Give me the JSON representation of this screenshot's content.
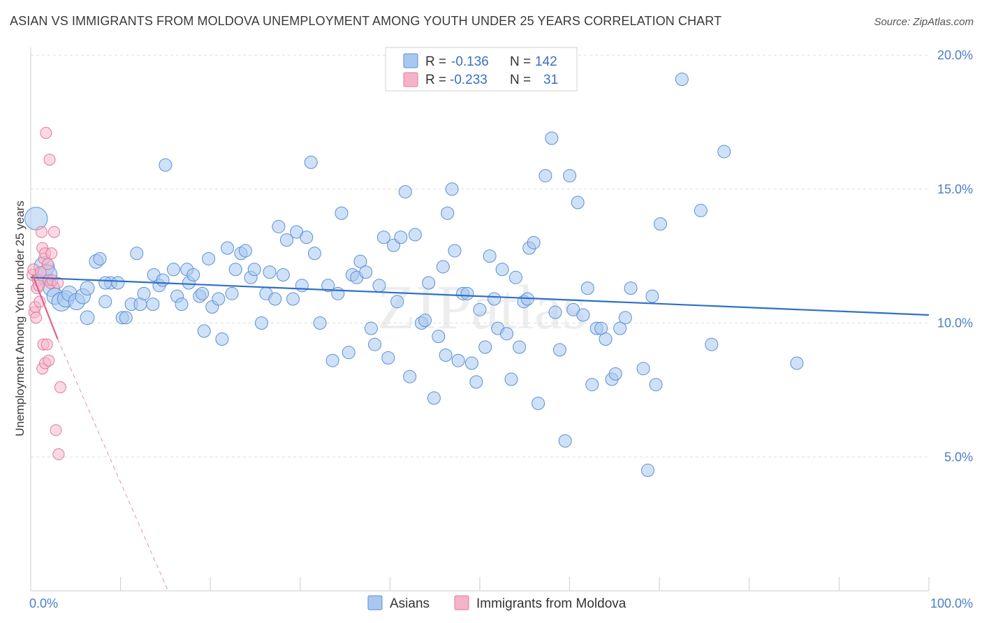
{
  "title": "ASIAN VS IMMIGRANTS FROM MOLDOVA UNEMPLOYMENT AMONG YOUTH UNDER 25 YEARS CORRELATION CHART",
  "source": "Source: ZipAtlas.com",
  "watermark": "ZIPatlas",
  "legend": {
    "rows": [
      {
        "r_label": "R =",
        "r_value": "-0.136",
        "n_label": "N =",
        "n_value": "142"
      },
      {
        "r_label": "R =",
        "r_value": "-0.233",
        "n_label": "N =",
        "n_value": "31"
      }
    ]
  },
  "bottom_legend": [
    "Asians",
    "Immigrants from Moldova"
  ],
  "colors": {
    "asian_fill": "#a8c8f0",
    "asian_stroke": "#5b8fd6",
    "asian_line": "#2f6fc8",
    "moldova_fill": "#f6b3c8",
    "moldova_stroke": "#e07a9c",
    "moldova_line": "#e0608a",
    "tick_text": "#4a7ec8",
    "grid": "#dddddd"
  },
  "chart_data": {
    "type": "scatter",
    "title": "ASIAN VS IMMIGRANTS FROM MOLDOVA UNEMPLOYMENT AMONG YOUTH UNDER 25 YEARS CORRELATION CHART",
    "xlabel": "",
    "ylabel": "Unemployment Among Youth under 25 years",
    "xlim": [
      0,
      100
    ],
    "ylim": [
      0,
      20
    ],
    "x_tick_labels": [
      "0.0%",
      "100.0%"
    ],
    "y_ticks": [
      5,
      10,
      15,
      20
    ],
    "y_tick_labels": [
      "5.0%",
      "10.0%",
      "15.0%",
      "20.0%"
    ],
    "grid": "horizontal dashed",
    "legend_position": "top-center",
    "series": [
      {
        "name": "Asians",
        "trend": {
          "x": [
            0,
            100
          ],
          "y": [
            11.7,
            10.3
          ]
        },
        "points": [
          [
            0.6,
            13.9,
            1.8
          ],
          [
            1.5,
            12.1,
            1.6
          ],
          [
            1.8,
            11.8,
            1.6
          ],
          [
            2.3,
            11.3,
            1.3
          ],
          [
            2.7,
            11.0,
            1.3
          ],
          [
            3.4,
            10.8,
            1.5
          ],
          [
            3.9,
            10.9,
            1.3
          ],
          [
            4.3,
            11.1,
            1.2
          ],
          [
            5.1,
            10.8,
            1.3
          ],
          [
            5.8,
            11.0,
            1.2
          ],
          [
            6.3,
            11.3,
            1.1
          ],
          [
            6.3,
            10.2,
            1.1
          ],
          [
            7.3,
            12.3,
            1.1
          ],
          [
            7.7,
            12.4,
            1.0
          ],
          [
            8.3,
            10.8,
            1.0
          ],
          [
            8.9,
            11.5,
            1.0
          ],
          [
            9.7,
            11.5,
            1.0
          ],
          [
            10.2,
            10.2,
            1.0
          ],
          [
            10.6,
            10.2,
            1.0
          ],
          [
            11.2,
            10.7,
            1.0
          ],
          [
            11.8,
            12.6,
            1.0
          ],
          [
            12.2,
            10.7,
            1.0
          ],
          [
            12.6,
            11.1,
            1.0
          ],
          [
            13.7,
            11.8,
            1.0
          ],
          [
            14.3,
            11.4,
            1.0
          ],
          [
            14.7,
            11.6,
            1.0
          ],
          [
            15.0,
            15.9,
            1.0
          ],
          [
            15.9,
            12.0,
            1.0
          ],
          [
            16.3,
            11.0,
            1.0
          ],
          [
            16.8,
            10.7,
            1.0
          ],
          [
            17.4,
            12.0,
            1.0
          ],
          [
            17.6,
            11.5,
            1.0
          ],
          [
            18.1,
            11.8,
            1.0
          ],
          [
            18.8,
            11.0,
            1.0
          ],
          [
            19.3,
            9.7,
            1.0
          ],
          [
            19.8,
            12.4,
            1.0
          ],
          [
            20.2,
            10.6,
            1.0
          ],
          [
            20.9,
            10.9,
            1.0
          ],
          [
            21.3,
            9.4,
            1.0
          ],
          [
            21.9,
            12.8,
            1.0
          ],
          [
            22.4,
            11.1,
            1.0
          ],
          [
            22.8,
            12.0,
            1.0
          ],
          [
            23.4,
            12.6,
            1.0
          ],
          [
            23.9,
            12.7,
            1.0
          ],
          [
            24.5,
            11.7,
            1.0
          ],
          [
            24.9,
            12.0,
            1.0
          ],
          [
            25.7,
            10.0,
            1.0
          ],
          [
            26.2,
            11.1,
            1.0
          ],
          [
            26.6,
            11.9,
            1.0
          ],
          [
            27.2,
            10.9,
            1.0
          ],
          [
            27.6,
            13.6,
            1.0
          ],
          [
            28.1,
            11.8,
            1.0
          ],
          [
            28.5,
            13.1,
            1.0
          ],
          [
            29.2,
            10.9,
            1.0
          ],
          [
            29.6,
            13.4,
            1.0
          ],
          [
            30.2,
            11.4,
            1.0
          ],
          [
            30.7,
            13.2,
            1.0
          ],
          [
            31.2,
            16.0,
            1.0
          ],
          [
            31.6,
            12.6,
            1.0
          ],
          [
            32.2,
            10.0,
            1.0
          ],
          [
            33.1,
            11.4,
            1.0
          ],
          [
            33.6,
            8.6,
            1.0
          ],
          [
            34.2,
            11.1,
            1.0
          ],
          [
            34.6,
            14.1,
            1.0
          ],
          [
            35.4,
            8.9,
            1.0
          ],
          [
            35.8,
            11.8,
            1.0
          ],
          [
            36.3,
            11.7,
            1.0
          ],
          [
            36.7,
            12.3,
            1.0
          ],
          [
            37.3,
            11.9,
            1.0
          ],
          [
            37.9,
            9.8,
            1.0
          ],
          [
            38.3,
            9.2,
            1.0
          ],
          [
            38.8,
            11.4,
            1.0
          ],
          [
            39.3,
            13.2,
            1.0
          ],
          [
            39.8,
            8.7,
            1.0
          ],
          [
            40.4,
            12.9,
            1.0
          ],
          [
            40.8,
            10.8,
            1.0
          ],
          [
            41.2,
            13.2,
            1.0
          ],
          [
            41.7,
            14.9,
            1.0
          ],
          [
            42.2,
            8.0,
            1.0
          ],
          [
            42.8,
            13.3,
            1.0
          ],
          [
            43.5,
            10.0,
            1.0
          ],
          [
            43.9,
            10.1,
            1.0
          ],
          [
            44.3,
            11.5,
            1.0
          ],
          [
            44.9,
            7.2,
            1.0
          ],
          [
            45.4,
            9.5,
            1.0
          ],
          [
            45.9,
            12.1,
            1.0
          ],
          [
            46.4,
            14.1,
            1.0
          ],
          [
            46.9,
            15.0,
            1.0
          ],
          [
            47.2,
            12.7,
            1.0
          ],
          [
            47.6,
            8.6,
            1.0
          ],
          [
            48.1,
            11.1,
            1.0
          ],
          [
            48.6,
            11.1,
            1.0
          ],
          [
            49.1,
            8.5,
            1.0
          ],
          [
            49.6,
            7.8,
            1.0
          ],
          [
            50.0,
            10.5,
            1.0
          ],
          [
            50.6,
            9.1,
            1.0
          ],
          [
            51.1,
            12.5,
            1.0
          ],
          [
            51.6,
            10.9,
            1.0
          ],
          [
            52.0,
            9.8,
            1.0
          ],
          [
            52.5,
            12.0,
            1.0
          ],
          [
            53.0,
            9.6,
            1.0
          ],
          [
            53.5,
            7.9,
            1.0
          ],
          [
            54.0,
            11.7,
            1.0
          ],
          [
            54.4,
            9.1,
            1.0
          ],
          [
            54.9,
            10.8,
            1.0
          ],
          [
            55.5,
            12.8,
            1.0
          ],
          [
            56.0,
            13.0,
            1.0
          ],
          [
            56.5,
            7.0,
            1.0
          ],
          [
            57.3,
            15.5,
            1.0
          ],
          [
            58.0,
            16.9,
            1.0
          ],
          [
            58.4,
            10.4,
            1.0
          ],
          [
            58.9,
            9.0,
            1.0
          ],
          [
            59.5,
            5.6,
            1.0
          ],
          [
            60.0,
            15.5,
            1.0
          ],
          [
            60.4,
            10.5,
            1.0
          ],
          [
            60.9,
            14.5,
            1.0
          ],
          [
            61.5,
            10.3,
            1.0
          ],
          [
            62.0,
            11.3,
            1.0
          ],
          [
            62.5,
            7.7,
            1.0
          ],
          [
            63.0,
            9.8,
            1.0
          ],
          [
            63.5,
            9.8,
            1.0
          ],
          [
            64.0,
            9.4,
            1.0
          ],
          [
            64.7,
            7.9,
            1.0
          ],
          [
            65.1,
            8.1,
            1.0
          ],
          [
            65.6,
            9.8,
            1.0
          ],
          [
            66.2,
            10.2,
            1.0
          ],
          [
            66.8,
            11.3,
            1.0
          ],
          [
            68.2,
            8.3,
            1.0
          ],
          [
            68.7,
            4.5,
            1.0
          ],
          [
            69.2,
            11.0,
            1.0
          ],
          [
            69.6,
            7.7,
            1.0
          ],
          [
            70.1,
            13.7,
            1.0
          ],
          [
            72.5,
            19.1,
            1.0
          ],
          [
            74.6,
            14.2,
            1.0
          ],
          [
            75.8,
            9.2,
            1.0
          ],
          [
            77.2,
            16.4,
            1.0
          ],
          [
            85.3,
            8.5,
            1.0
          ],
          [
            8.3,
            11.5,
            1.0
          ],
          [
            13.6,
            10.7,
            1.0
          ],
          [
            19.1,
            11.1,
            1.0
          ],
          [
            46.2,
            8.8,
            1.0
          ],
          [
            55.3,
            10.9,
            1.0
          ]
        ]
      },
      {
        "name": "Immigrants from Moldova",
        "trend": {
          "x": [
            0.2,
            3.0
          ],
          "y": [
            11.8,
            9.4
          ]
        },
        "trend_extended": {
          "x": [
            3.0,
            15.3
          ],
          "y": [
            9.4,
            0
          ]
        },
        "points": [
          [
            0.2,
            11.8,
            1
          ],
          [
            0.3,
            12.0,
            1
          ],
          [
            0.4,
            10.4,
            1
          ],
          [
            0.5,
            10.6,
            1
          ],
          [
            0.6,
            10.2,
            1
          ],
          [
            0.7,
            11.3,
            1
          ],
          [
            0.8,
            11.6,
            1
          ],
          [
            0.9,
            11.4,
            1
          ],
          [
            1.0,
            10.8,
            1
          ],
          [
            1.1,
            11.9,
            1
          ],
          [
            1.2,
            13.4,
            1
          ],
          [
            1.3,
            12.8,
            1
          ],
          [
            1.3,
            8.3,
            1
          ],
          [
            1.4,
            9.2,
            1
          ],
          [
            1.5,
            12.4,
            1
          ],
          [
            1.6,
            12.6,
            1
          ],
          [
            1.6,
            8.5,
            1
          ],
          [
            1.7,
            17.1,
            1
          ],
          [
            1.8,
            9.2,
            1
          ],
          [
            1.9,
            12.2,
            1
          ],
          [
            2.0,
            11.6,
            1
          ],
          [
            2.0,
            8.6,
            1
          ],
          [
            2.1,
            16.1,
            1
          ],
          [
            2.2,
            11.5,
            1
          ],
          [
            2.3,
            12.6,
            1
          ],
          [
            2.4,
            11.6,
            1
          ],
          [
            2.6,
            13.4,
            1
          ],
          [
            2.8,
            6.0,
            1
          ],
          [
            3.0,
            11.5,
            1
          ],
          [
            3.1,
            5.1,
            1
          ],
          [
            3.3,
            7.6,
            1
          ]
        ]
      }
    ]
  }
}
